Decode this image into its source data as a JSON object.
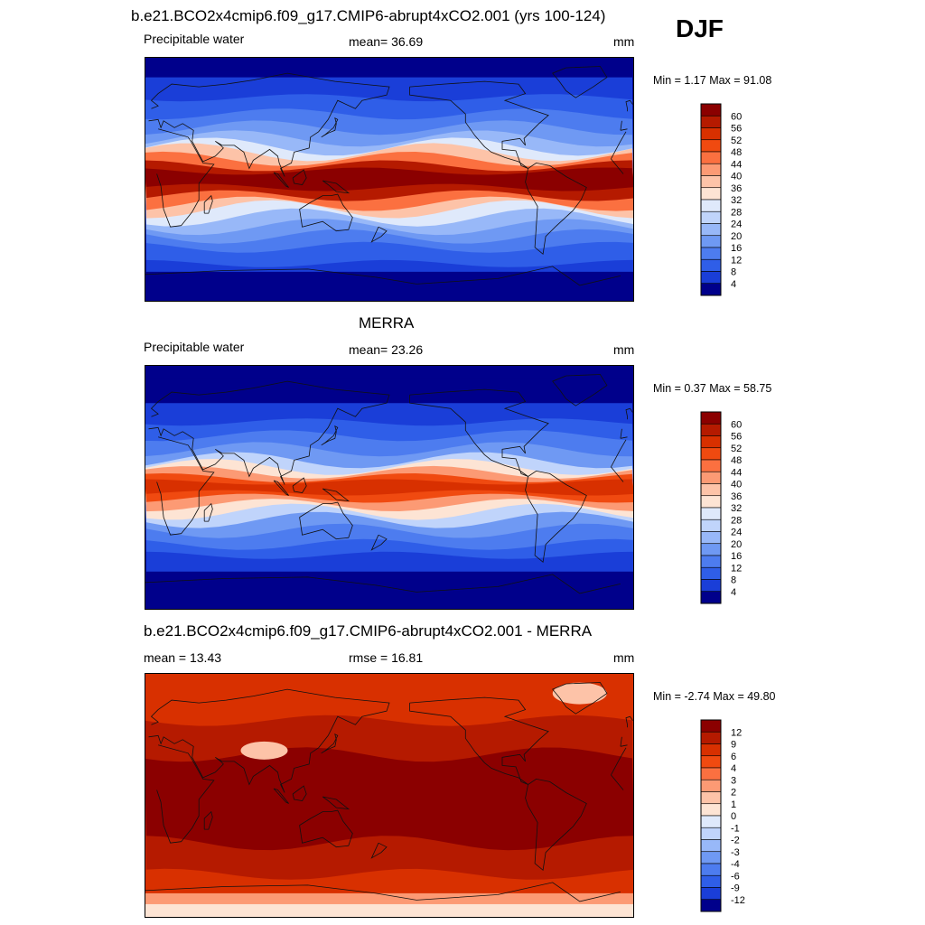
{
  "season": "DJF",
  "panels": [
    {
      "id": "model",
      "title": "b.e21.BCO2x4cmip6.f09_g17.CMIP6-abrupt4xCO2.001 (yrs 100-124)",
      "left_label": "Precipitable water",
      "center_label": "mean=  36.69",
      "units": "mm",
      "minmax": "Min =   1.17 Max =  91.08",
      "field": "model",
      "colorbar_levels": [
        "60",
        "56",
        "52",
        "48",
        "44",
        "40",
        "36",
        "32",
        "28",
        "24",
        "20",
        "16",
        "12",
        "8",
        "4"
      ],
      "colorbar_colors": [
        "#8b0000",
        "#b51a00",
        "#d83000",
        "#f04a10",
        "#fb7040",
        "#fc9a74",
        "#fdc3a8",
        "#fde4d4",
        "#dfe9fb",
        "#c0d4fb",
        "#98b8f8",
        "#6f99f3",
        "#4d7cef",
        "#2f5ee8",
        "#1a3ed8",
        "#00008b"
      ]
    },
    {
      "id": "obs",
      "title": "MERRA",
      "left_label": "Precipitable water",
      "center_label": "mean=  23.26",
      "units": "mm",
      "minmax": "Min =   0.37 Max =  58.75",
      "field": "obs",
      "colorbar_levels": [
        "60",
        "56",
        "52",
        "48",
        "44",
        "40",
        "36",
        "32",
        "28",
        "24",
        "20",
        "16",
        "12",
        "8",
        "4"
      ],
      "colorbar_colors": [
        "#8b0000",
        "#b51a00",
        "#d83000",
        "#f04a10",
        "#fb7040",
        "#fc9a74",
        "#fdc3a8",
        "#fde4d4",
        "#dfe9fb",
        "#c0d4fb",
        "#98b8f8",
        "#6f99f3",
        "#4d7cef",
        "#2f5ee8",
        "#1a3ed8",
        "#00008b"
      ]
    },
    {
      "id": "diff",
      "title": "b.e21.BCO2x4cmip6.f09_g17.CMIP6-abrupt4xCO2.001 - MERRA",
      "left_label": "mean =  13.43",
      "center_label": "rmse =  16.81",
      "units": "mm",
      "minmax": "Min =  -2.74 Max =  49.80",
      "field": "diff",
      "colorbar_levels": [
        "12",
        "9",
        "6",
        "4",
        "3",
        "2",
        "1",
        "0",
        "-1",
        "-2",
        "-3",
        "-4",
        "-6",
        "-9",
        "-12"
      ],
      "colorbar_colors": [
        "#8b0000",
        "#b51a00",
        "#d83000",
        "#f04a10",
        "#fb7040",
        "#fc9a74",
        "#fdc3a8",
        "#fde4d4",
        "#dfe9fb",
        "#c0d4fb",
        "#98b8f8",
        "#6f99f3",
        "#4d7cef",
        "#2f5ee8",
        "#1a3ed8",
        "#00008b"
      ]
    }
  ]
}
